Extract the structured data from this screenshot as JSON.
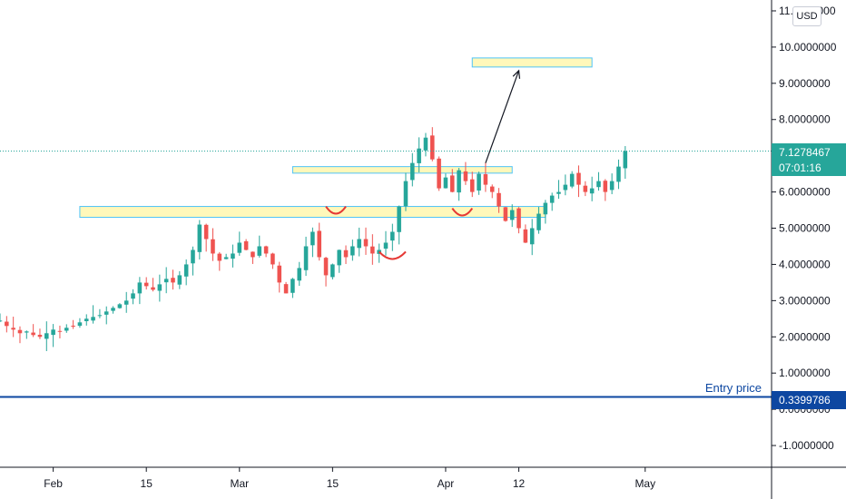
{
  "currency_button": "USD",
  "price_tag": {
    "price": "7.1278467",
    "countdown": "07:01:16"
  },
  "entry": {
    "label": "Entry price",
    "price": "0.3399786",
    "value": 0.3399786
  },
  "colors": {
    "up": "#26a69a",
    "down": "#ef5350",
    "entry_line": "#0d47a1",
    "zone_fill": "#fff59d",
    "zone_stroke": "#4fc3f7",
    "annotation": "#e53935"
  },
  "chart_data": {
    "type": "candlestick",
    "y_ticks": [
      "11.0000000",
      "10.0000000",
      "9.0000000",
      "8.0000000",
      "6.0000000",
      "5.0000000",
      "4.0000000",
      "3.0000000",
      "2.0000000",
      "1.0000000",
      "0.0000000",
      "-1.0000000"
    ],
    "y_tick_values": [
      11,
      10,
      9,
      8,
      6,
      5,
      4,
      3,
      2,
      1,
      0,
      -1
    ],
    "x_ticks": [
      "Feb",
      "15",
      "Mar",
      "15",
      "Apr",
      "12",
      "May"
    ],
    "x_tick_dates": [
      "2021-02-01",
      "2021-02-15",
      "2021-03-01",
      "2021-03-15",
      "2021-04-01",
      "2021-04-12",
      "2021-05-01"
    ],
    "ylim": [
      -1.6,
      11.3
    ],
    "xlim": [
      "2021-01-24",
      "2021-05-20"
    ],
    "closes": [
      2.45,
      2.3,
      2.2,
      2.1,
      2.15,
      2.05,
      2.0,
      2.1,
      2.2,
      2.15,
      2.25,
      2.3,
      2.4,
      2.5,
      2.55,
      2.6,
      2.7,
      2.8,
      2.9,
      3.0,
      3.2,
      3.5,
      3.4,
      3.3,
      3.45,
      3.6,
      3.5,
      3.7,
      4.0,
      4.4,
      5.1,
      4.7,
      4.3,
      4.1,
      4.2,
      4.3,
      4.6,
      4.4,
      4.2,
      4.5,
      4.3,
      4.0,
      3.5,
      3.2,
      3.6,
      3.9,
      4.5,
      4.9,
      4.2,
      3.7,
      4.0,
      4.4,
      4.2,
      4.5,
      4.7,
      4.5,
      4.3,
      4.4,
      4.6,
      4.9,
      5.6,
      6.3,
      6.8,
      7.2,
      7.5,
      6.9,
      6.1,
      6.4,
      6.0,
      6.6,
      6.3,
      6.0,
      6.5,
      6.2,
      6.0,
      5.6,
      5.2,
      5.5,
      5.0,
      4.6,
      5.0,
      5.4,
      5.7,
      5.9,
      6.0,
      6.2,
      6.5,
      6.2,
      6.0,
      6.1,
      6.3,
      6.0,
      6.3,
      6.7,
      7.13
    ],
    "x_start": "2021-01-24",
    "zones": [
      {
        "y_low": 5.3,
        "y_high": 5.6,
        "x_start": "2021-02-05",
        "x_end": "2021-04-16"
      },
      {
        "y_low": 6.52,
        "y_high": 6.7,
        "x_start": "2021-03-09",
        "x_end": "2021-04-11"
      },
      {
        "y_low": 9.45,
        "y_high": 9.7,
        "x_start": "2021-04-05",
        "x_end": "2021-04-23"
      }
    ],
    "arrow": {
      "from": [
        "2021-04-07",
        6.8
      ],
      "to": [
        "2021-04-12",
        9.35
      ]
    },
    "smiles": [
      {
        "x_start": "2021-03-14",
        "x_end": "2021-03-17",
        "y": 5.45
      },
      {
        "x_start": "2021-03-22",
        "x_end": "2021-03-26",
        "y": 4.2
      },
      {
        "x_start": "2021-04-02",
        "x_end": "2021-04-05",
        "y": 5.4
      }
    ]
  }
}
